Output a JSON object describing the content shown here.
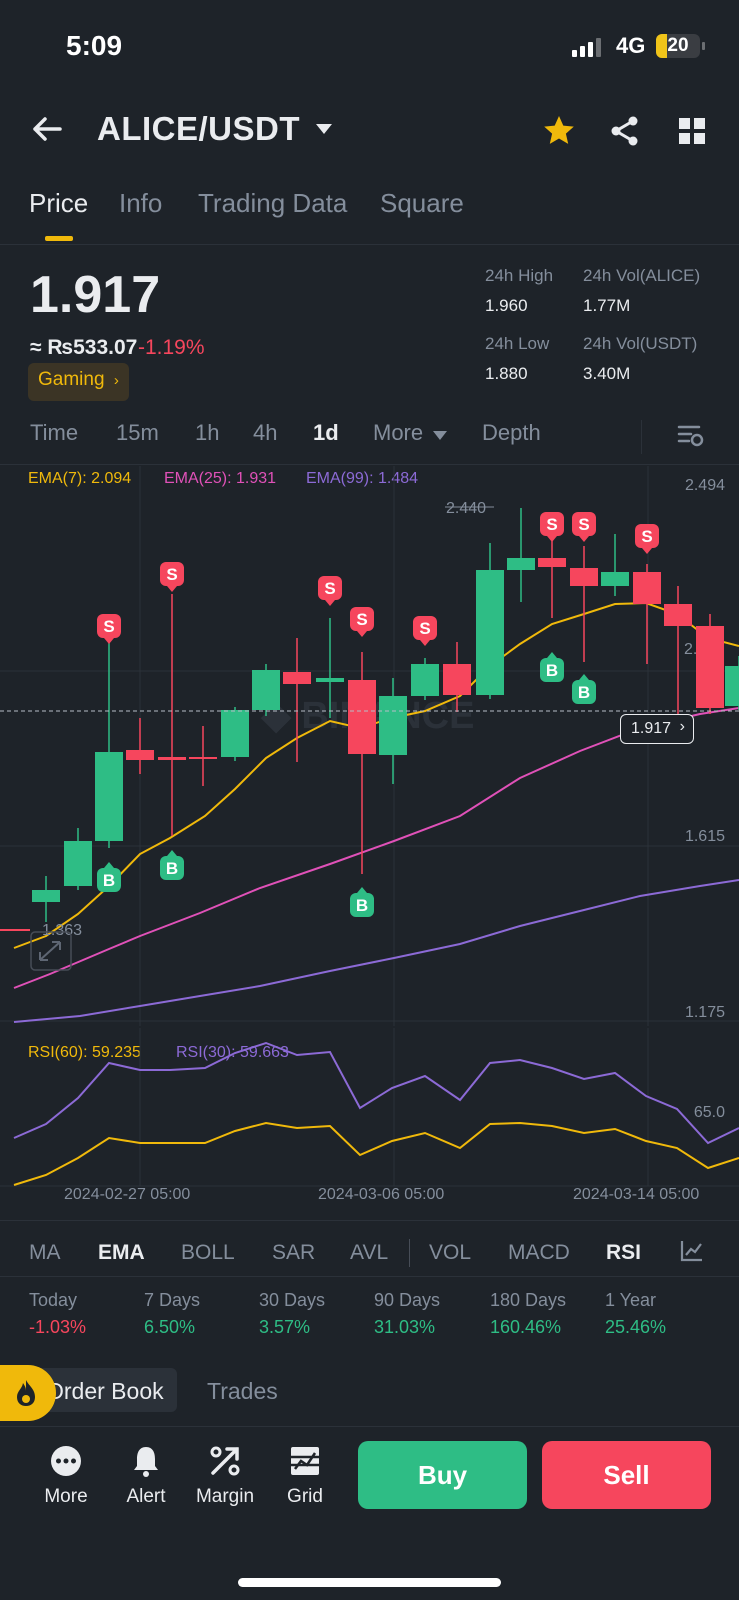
{
  "status_bar": {
    "time": "5:09",
    "network": "4G",
    "battery": "20"
  },
  "header": {
    "pair": "ALICE/USDT"
  },
  "tabs": [
    "Price",
    "Info",
    "Trading Data",
    "Square"
  ],
  "ticker": {
    "price": "1.917",
    "inr": "≈ ₨533.07",
    "change": "-1.19%",
    "tag": "Gaming",
    "stats": {
      "high_label": "24h High",
      "high": "1.960",
      "vol_base_label": "24h Vol(ALICE)",
      "vol_base": "1.77M",
      "low_label": "24h Low",
      "low": "1.880",
      "vol_quote_label": "24h Vol(USDT)",
      "vol_quote": "3.40M"
    }
  },
  "intervals": [
    "Time",
    "15m",
    "1h",
    "4h",
    "1d",
    "More",
    "Depth"
  ],
  "chart": {
    "ema": [
      "EMA(7): 2.094",
      "EMA(25): 1.931",
      "EMA(99): 1.484"
    ],
    "price_ticks": [
      "2.494",
      "1.615",
      "1.175"
    ],
    "high_marker": "2.440",
    "low_marker": "1.363",
    "current_price": "1.917",
    "partial_tick": "2."
  },
  "rsi": {
    "rsi60": "RSI(60): 59.235",
    "rsi30": "RSI(30): 59.663",
    "tick": "65.0"
  },
  "dates": [
    "2024-02-27 05:00",
    "2024-03-06 05:00",
    "2024-03-14 05:00"
  ],
  "indicators": [
    "MA",
    "EMA",
    "BOLL",
    "SAR",
    "AVL",
    "VOL",
    "MACD",
    "RSI"
  ],
  "performance": [
    {
      "label": "Today",
      "value": "-1.03%"
    },
    {
      "label": "7 Days",
      "value": "6.50%"
    },
    {
      "label": "30 Days",
      "value": "3.57%"
    },
    {
      "label": "90 Days",
      "value": "31.03%"
    },
    {
      "label": "180 Days",
      "value": "160.46%"
    },
    {
      "label": "1 Year",
      "value": "25.46%"
    }
  ],
  "book_tabs": {
    "order_book": "Order Book",
    "trades": "Trades"
  },
  "bottom": {
    "more": "More",
    "alert": "Alert",
    "margin": "Margin",
    "grid": "Grid",
    "buy": "Buy",
    "sell": "Sell"
  },
  "marker_labels": {
    "sell": "S",
    "buy": "B"
  },
  "colors": {
    "up": "#2ebd85",
    "down": "#f6465d",
    "accent": "#f0b90b",
    "ema7": "#f0b90b",
    "ema25": "#e051b8",
    "ema99": "#8c6ad6",
    "bg": "#1e2329"
  }
}
